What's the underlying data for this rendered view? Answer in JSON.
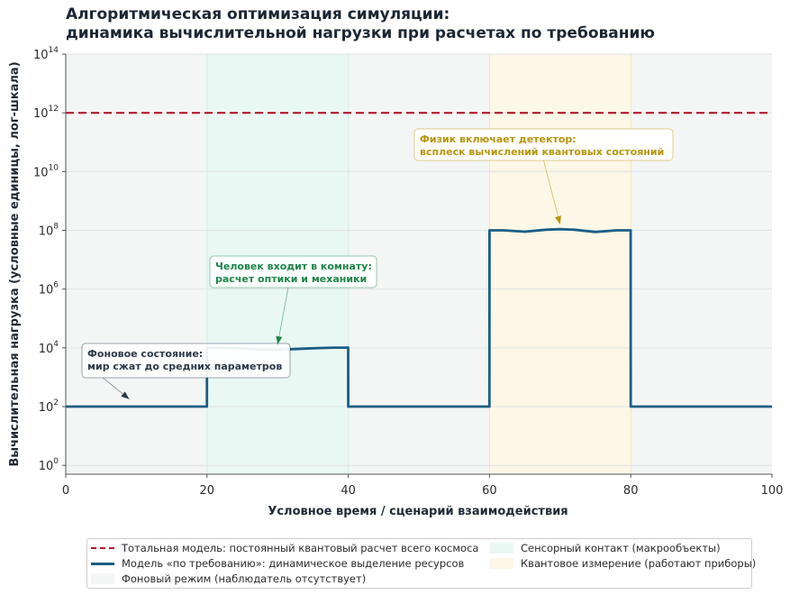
{
  "title_lines": [
    "Алгоритмическая оптимизация симуляции:",
    "динамика вычислительной нагрузки при расчетах по требованию"
  ],
  "colors": {
    "total_model": "#b2182b",
    "on_demand_model": "#1b5e85",
    "background_mode": "#f4f5f5",
    "sensory_contact": "#eaf8f4",
    "quantum_measurement": "#fcf7e6",
    "annotation_background": "#2b3a4a",
    "annotation_sensory": "#1e8449",
    "annotation_quantum": "#b7950b"
  },
  "chart_data": {
    "type": "line",
    "xlabel": "Условное время / сценарий взаимодействия",
    "ylabel": "Вычислительная нагрузка (условные единицы, лог-шкала)",
    "xlim": [
      0,
      100
    ],
    "ylim": [
      0.5,
      100000000000000.0
    ],
    "y_scale": "log",
    "x_ticks": [
      0,
      20,
      40,
      60,
      80,
      100
    ],
    "y_ticks": [
      {
        "value": 1,
        "base": "10",
        "exp": "0"
      },
      {
        "value": 100,
        "base": "10",
        "exp": "2"
      },
      {
        "value": 10000,
        "base": "10",
        "exp": "4"
      },
      {
        "value": 1000000,
        "base": "10",
        "exp": "6"
      },
      {
        "value": 100000000,
        "base": "10",
        "exp": "8"
      },
      {
        "value": 10000000000,
        "base": "10",
        "exp": "10"
      },
      {
        "value": 1000000000000,
        "base": "10",
        "exp": "12"
      },
      {
        "value": 100000000000000,
        "base": "10",
        "exp": "14"
      }
    ],
    "grid": "horizontal",
    "legend_position": "bottom",
    "regions": [
      {
        "x0": 0,
        "x1": 20,
        "kind": "background_mode"
      },
      {
        "x0": 20,
        "x1": 40,
        "kind": "sensory_contact"
      },
      {
        "x0": 40,
        "x1": 60,
        "kind": "background_mode"
      },
      {
        "x0": 60,
        "x1": 80,
        "kind": "quantum_measurement"
      },
      {
        "x0": 80,
        "x1": 100,
        "kind": "background_mode"
      }
    ],
    "series": [
      {
        "name": "Тотальная модель: постоянный квантовый расчет всего космоса",
        "style": "dashed",
        "x": [
          0,
          100
        ],
        "y": [
          1000000000000.0,
          1000000000000.0
        ]
      },
      {
        "name": "Модель «по требованию»: динамическое выделение ресурсов",
        "style": "solid",
        "x": [
          0,
          19.99,
          20,
          22,
          25,
          28,
          30,
          32,
          35,
          38,
          39.99,
          40,
          59.99,
          60,
          62,
          65,
          68,
          70,
          72,
          75,
          78,
          79.99,
          80,
          100
        ],
        "y": [
          100,
          100,
          10000,
          10000,
          9500,
          8800,
          8800,
          9000,
          9700,
          10200,
          10200,
          100,
          100,
          100000000.0,
          100000000.0,
          90000000.0,
          105000000.0,
          110000000.0,
          105000000.0,
          88000000.0,
          100000000.0,
          100000000.0,
          100,
          100
        ]
      }
    ],
    "legend": [
      {
        "label": "Тотальная модель: постоянный квантовый расчет всего космоса",
        "kind": "dash"
      },
      {
        "label": "Сенсорный контакт (макрообъекты)",
        "kind": "sensory_contact"
      },
      {
        "label": "Модель «по требованию»: динамическое выделение ресурсов",
        "kind": "line"
      },
      {
        "label": "Квантовое измерение (работают приборы)",
        "kind": "quantum_measurement"
      },
      {
        "label": "Фоновый режим (наблюдатель отсутствует)",
        "kind": "background_mode"
      }
    ],
    "annotations": [
      {
        "lines": [
          "Фоновое состояние:",
          "мир сжат до средних параметров"
        ],
        "color_key": "annotation_background",
        "target_x": 9,
        "target_y": 180
      },
      {
        "lines": [
          "Человек входит в комнату:",
          "расчет оптики и механики"
        ],
        "color_key": "annotation_sensory",
        "target_x": 30,
        "target_y": 13000
      },
      {
        "lines": [
          "Физик включает детектор:",
          "всплеск вычислений квантовых состояний"
        ],
        "color_key": "annotation_quantum",
        "target_x": 70,
        "target_y": 160000000.0
      }
    ]
  }
}
